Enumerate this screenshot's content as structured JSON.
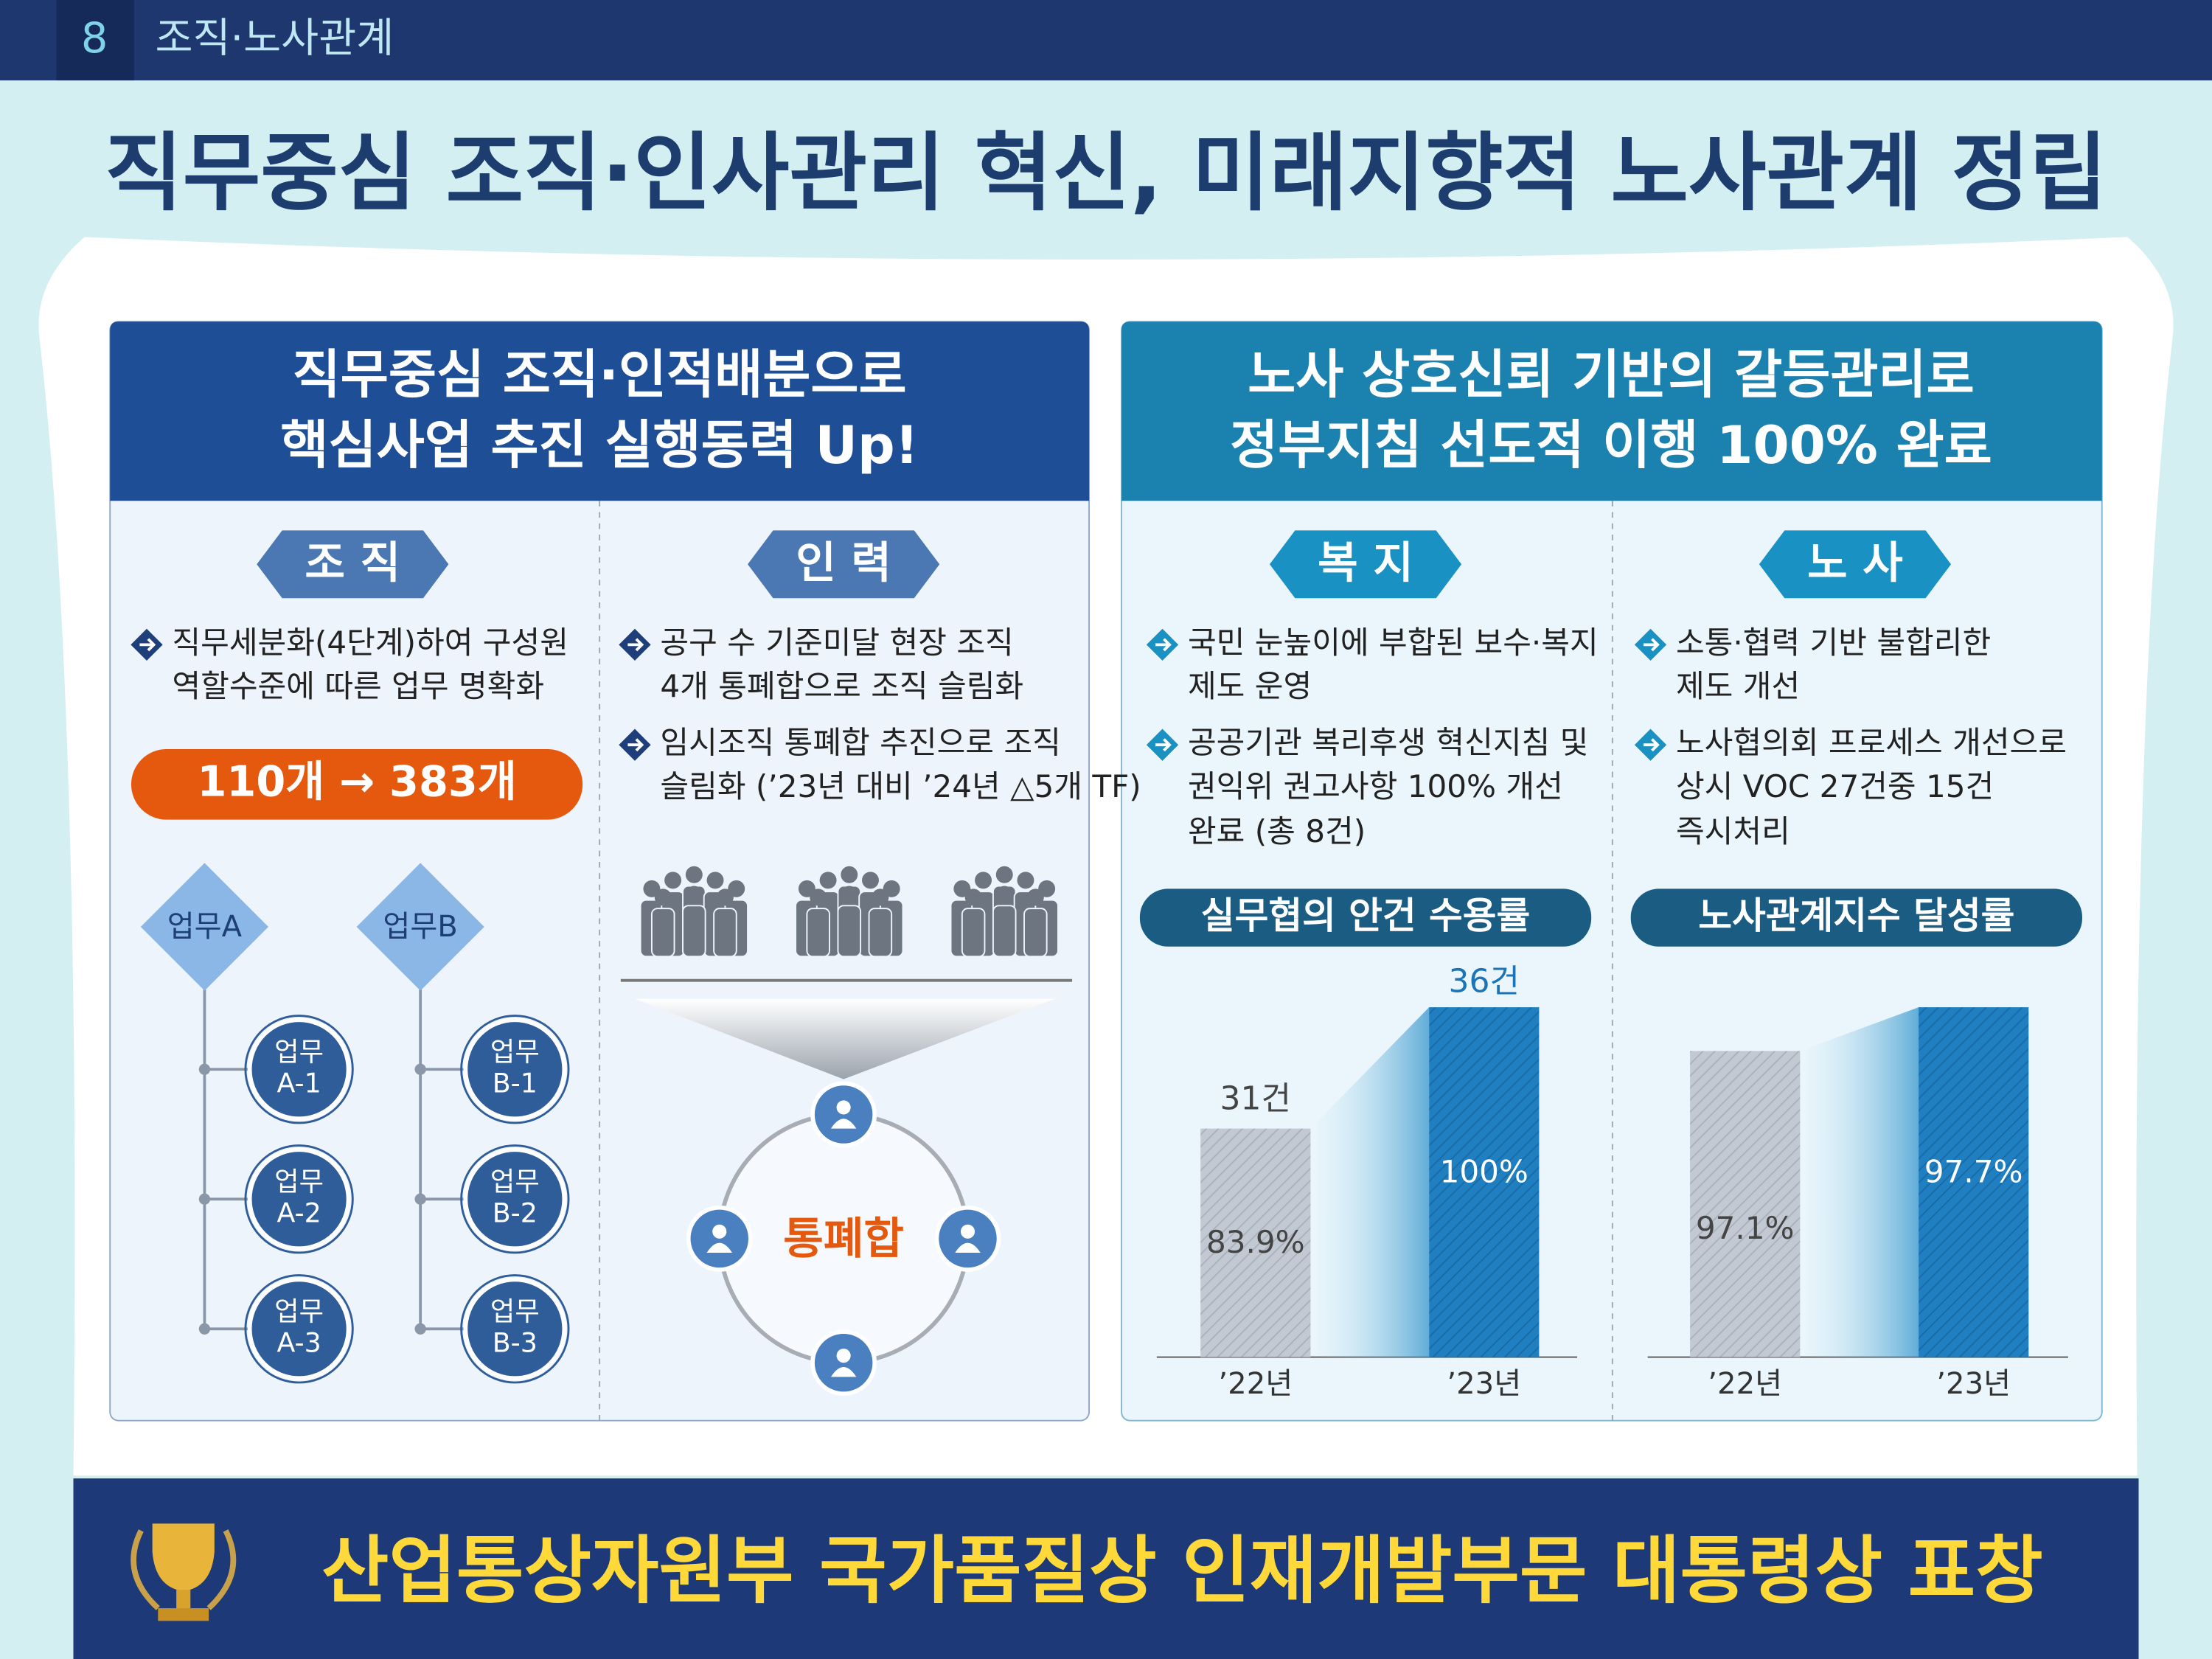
{
  "section": {
    "number": "8",
    "name": "조직·노사관계"
  },
  "title": "직무중심 조직·인사관리 혁신, 미래지향적 노사관계 정립",
  "left_panel": {
    "heading": [
      "직무중심 조직·인적배분으로",
      "핵심사업 추진 실행동력 Up!"
    ],
    "columns": [
      {
        "tag": "조 직",
        "bullets": [
          [
            "직무세분화(4단계)하여 구성원",
            "역할수준에 따른 업무 명확화"
          ]
        ],
        "highlight": "110개 → 383개",
        "tree": [
          {
            "root": "업무A",
            "children": [
              [
                "업무",
                "A-1"
              ],
              [
                "업무",
                "A-2"
              ],
              [
                "업무",
                "A-3"
              ]
            ]
          },
          {
            "root": "업무B",
            "children": [
              [
                "업무",
                "B-1"
              ],
              [
                "업무",
                "B-2"
              ],
              [
                "업무",
                "B-3"
              ]
            ]
          }
        ]
      },
      {
        "tag": "인 력",
        "bullets": [
          [
            "공구 수 기준미달 현장 조직",
            "4개 통폐합으로 조직 슬림화"
          ],
          [
            "임시조직 통폐합 추진으로 조직",
            "슬림화 (’23년 대비 ’24년 △5개 TF)"
          ]
        ],
        "center": "통폐합"
      }
    ]
  },
  "right_panel": {
    "heading": [
      "노사 상호신뢰 기반의 갈등관리로",
      "정부지침 선도적 이행 100% 완료"
    ],
    "columns": [
      {
        "tag": "복 지",
        "bullets": [
          [
            "국민 눈높이에 부합된 보수·복지",
            "제도 운영"
          ],
          [
            "공공기관 복리후생 혁신지침 및",
            "권익위 권고사항 100% 개선",
            "완료 (총 8건)"
          ]
        ],
        "chart": {
          "title": "실무협의 안건 수용률",
          "bars": [
            {
              "year": "’22년",
              "count": "31건",
              "rate": "83.9%"
            },
            {
              "year": "’23년",
              "count": "36건",
              "rate": "100%"
            }
          ]
        }
      },
      {
        "tag": "노 사",
        "bullets": [
          [
            "소통·협력 기반 불합리한",
            "제도 개선"
          ],
          [
            "노사협의회 프로세스 개선으로",
            "상시 VOC 27건중 15건",
            "즉시처리"
          ]
        ],
        "chart": {
          "title": "노사관계지수 달성률",
          "bars": [
            {
              "year": "’22년",
              "rate": "97.1%"
            },
            {
              "year": "’23년",
              "rate": "97.7%"
            }
          ]
        }
      }
    ]
  },
  "footer": "산업통상자원부 국가품질상 인재개발부문 대통령상 표창"
}
